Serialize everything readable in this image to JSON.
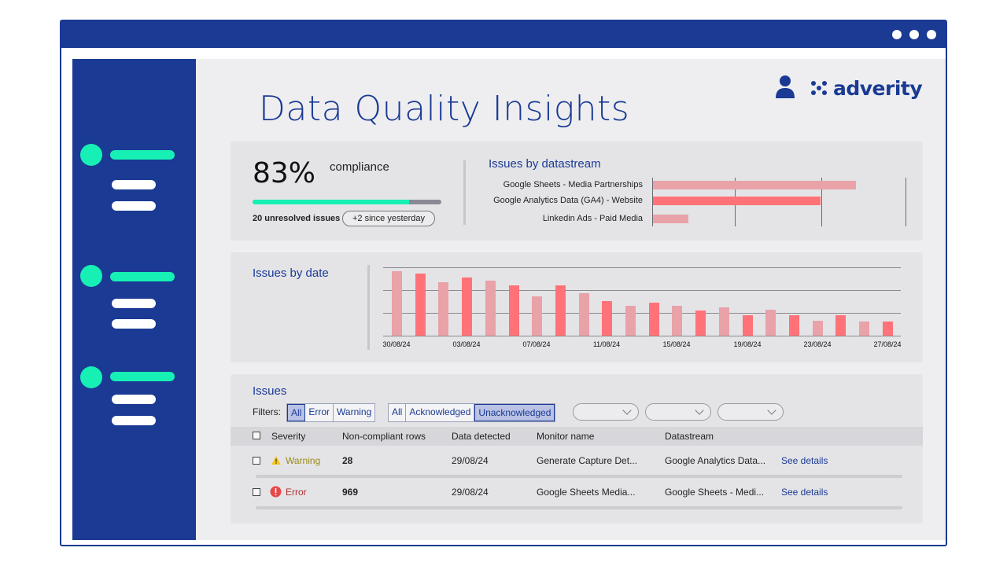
{
  "header": {
    "title": "Data Quality Insights",
    "brand": "adverity",
    "window_dots": [
      "dot",
      "dot",
      "dot"
    ]
  },
  "compliance": {
    "percent_text": "83%",
    "percent_value": 83,
    "label": "compliance",
    "unresolved": "20 unresolved issues",
    "delta": "+2 since yesterday"
  },
  "issues_by_datastream": {
    "title": "Issues by datastream",
    "rows": [
      {
        "label": "Google Sheets - Media Partnerships",
        "value": 0.8,
        "color": "#e8a2a8"
      },
      {
        "label": "Google Analytics Data (GA4) - Website",
        "value": 0.66,
        "color": "#ff7278"
      },
      {
        "label": "Linkedin Ads - Paid Media",
        "value": 0.14,
        "color": "#e8a2a8"
      }
    ]
  },
  "issues_by_date": {
    "title": "Issues by date",
    "tick_labels": [
      "30/08/24",
      "03/08/24",
      "07/08/24",
      "11/08/24",
      "15/08/24",
      "19/08/24",
      "23/08/24",
      "27/08/24"
    ],
    "values": [
      0.94,
      0.91,
      0.78,
      0.85,
      0.81,
      0.73,
      0.57,
      0.73,
      0.62,
      0.5,
      0.44,
      0.48,
      0.44,
      0.37,
      0.41,
      0.3,
      0.38,
      0.3,
      0.22,
      0.3,
      0.21,
      0.21
    ],
    "colors": [
      "#e8a2a8",
      "#ff7278"
    ]
  },
  "issues": {
    "title": "Issues",
    "filters_label": "Filters:",
    "severity_filters": [
      {
        "label": "All",
        "active": true
      },
      {
        "label": "Error",
        "active": false
      },
      {
        "label": "Warning",
        "active": false
      }
    ],
    "status_filters": [
      {
        "label": "All",
        "active": false
      },
      {
        "label": "Acknowledged",
        "active": false
      },
      {
        "label": "Unacknowledged",
        "active": true
      }
    ],
    "columns": [
      "Severity",
      "Non-compliant rows",
      "Data detected",
      "Monitor name",
      "Datastream"
    ],
    "rows": [
      {
        "severity": "Warning",
        "severity_color": "#9a8a1a",
        "icon": "warning-icon",
        "rows": "28",
        "date": "29/08/24",
        "monitor": "Generate Capture Det...",
        "datastream": "Google Analytics Data...",
        "link": "See details"
      },
      {
        "severity": "Error",
        "severity_color": "#b03030",
        "icon": "error-icon",
        "rows": "969",
        "date": "29/08/24",
        "monitor": "Google Sheets Media...",
        "datastream": "Google Sheets - Medi...",
        "link": "See details"
      }
    ]
  }
}
